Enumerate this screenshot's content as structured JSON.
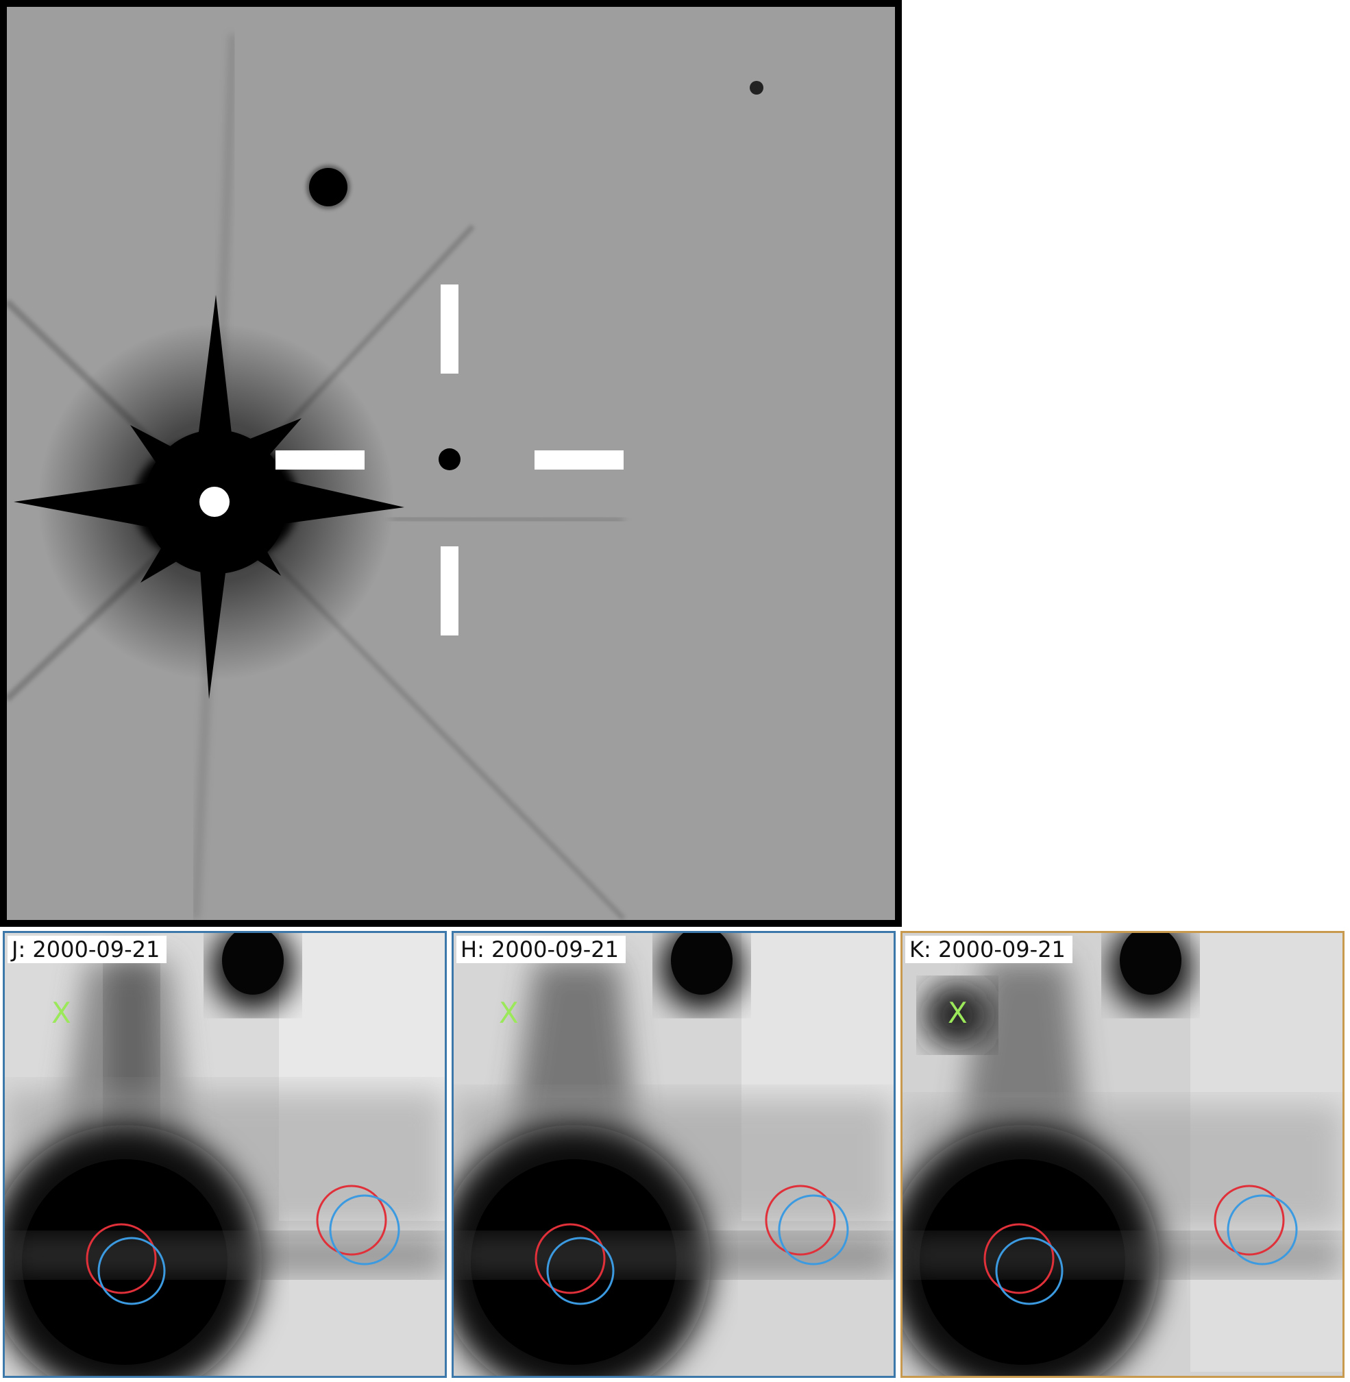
{
  "panels": [
    {
      "label": "J: 2000-09-21",
      "marker": "X",
      "selected": false
    },
    {
      "label": "H: 2000-09-21",
      "marker": "X",
      "selected": false
    },
    {
      "label": "K: 2000-09-21",
      "marker": "X",
      "selected": true
    }
  ],
  "colors": {
    "frame": "#000000",
    "sky": "#9e9e9e",
    "crosshair": "#ffffff",
    "marker": "#9be85a",
    "circle_red": "#e0303a",
    "circle_blue": "#3c9ae0",
    "border_default": "#3d78aa",
    "border_selected": "#c79a50"
  }
}
